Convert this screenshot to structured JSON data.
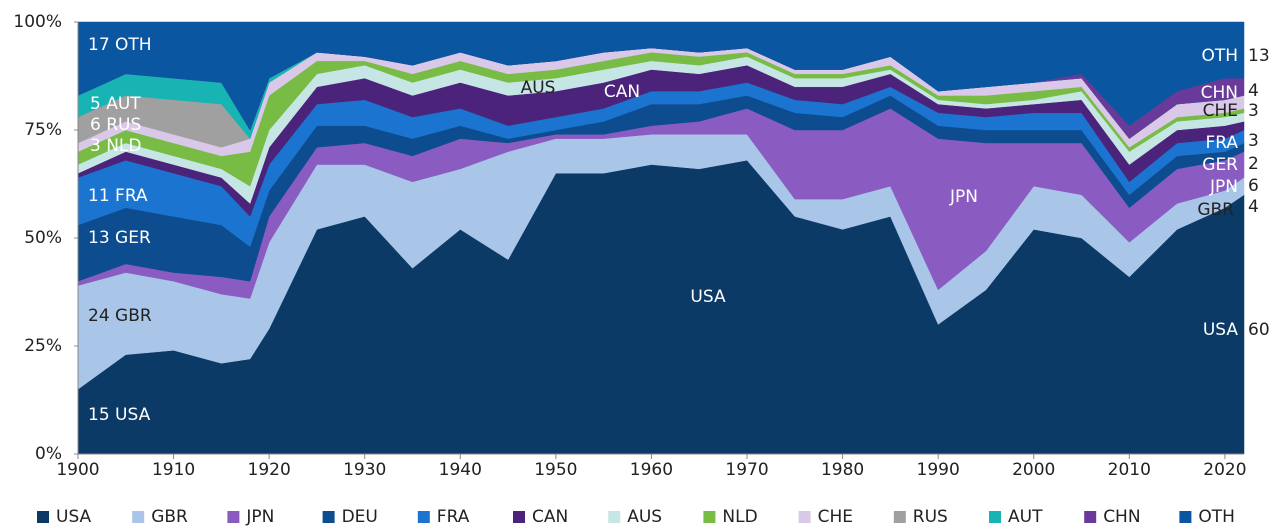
{
  "chart_data": {
    "type": "stacked_area",
    "x": [
      1900,
      1905,
      1910,
      1915,
      1918,
      1920,
      1925,
      1930,
      1935,
      1940,
      1945,
      1950,
      1955,
      1960,
      1965,
      1970,
      1975,
      1980,
      1985,
      1990,
      1995,
      2000,
      2005,
      2010,
      2015,
      2020,
      2022
    ],
    "series": [
      {
        "name": "USA",
        "color": "#0b3a66",
        "values": [
          15,
          23,
          24,
          21,
          22,
          29,
          52,
          55,
          43,
          52,
          45,
          65,
          65,
          67,
          66,
          68,
          55,
          52,
          55,
          30,
          38,
          52,
          50,
          41,
          52,
          57,
          60
        ]
      },
      {
        "name": "GBR",
        "color": "#a9c6e8",
        "values": [
          24,
          19,
          16,
          16,
          14,
          20,
          15,
          12,
          20,
          14,
          25,
          8,
          8,
          7,
          8,
          6,
          4,
          7,
          7,
          8,
          9,
          10,
          10,
          8,
          6,
          4,
          4
        ]
      },
      {
        "name": "JPN",
        "color": "#8a5cc2",
        "values": [
          1,
          2,
          2,
          4,
          4,
          6,
          4,
          5,
          6,
          7,
          2,
          1,
          1,
          2,
          3,
          6,
          16,
          16,
          18,
          35,
          25,
          10,
          12,
          8,
          8,
          7,
          6
        ]
      },
      {
        "name": "DEU",
        "color": "#0d4c8f",
        "values": [
          13,
          13,
          13,
          12,
          8,
          6,
          5,
          4,
          4,
          3,
          1,
          1,
          3,
          5,
          4,
          3,
          4,
          3,
          3,
          3,
          3,
          3,
          3,
          3,
          3,
          2,
          2
        ]
      },
      {
        "name": "FRA",
        "color": "#1a74d0",
        "values": [
          11,
          11,
          10,
          9,
          7,
          6,
          5,
          6,
          5,
          4,
          3,
          3,
          3,
          3,
          3,
          3,
          3,
          3,
          2,
          3,
          3,
          4,
          4,
          3,
          3,
          3,
          3
        ]
      },
      {
        "name": "CAN",
        "color": "#4b237a",
        "values": [
          1,
          2,
          2,
          2,
          3,
          4,
          4,
          5,
          5,
          6,
          7,
          6,
          6,
          5,
          4,
          4,
          3,
          4,
          3,
          2,
          2,
          2,
          3,
          4,
          3,
          3,
          2
        ]
      },
      {
        "name": "AUS",
        "color": "#c6e6e6",
        "values": [
          2,
          2,
          2,
          2,
          4,
          4,
          3,
          3,
          3,
          3,
          3,
          3,
          3,
          2,
          2,
          2,
          2,
          2,
          1,
          1,
          1,
          1,
          2,
          3,
          2,
          2,
          2
        ]
      },
      {
        "name": "NLD",
        "color": "#78bc45",
        "values": [
          3,
          3,
          3,
          3,
          8,
          8,
          3,
          1,
          2,
          2,
          2,
          2,
          2,
          2,
          2,
          1,
          1,
          1,
          1,
          1,
          2,
          2,
          1,
          1,
          1,
          1,
          1
        ]
      },
      {
        "name": "CHE",
        "color": "#d9c8e8",
        "values": [
          2,
          2,
          2,
          2,
          3,
          3,
          2,
          1,
          2,
          2,
          2,
          2,
          2,
          1,
          1,
          1,
          1,
          1,
          2,
          1,
          2,
          2,
          2,
          2,
          3,
          3,
          3
        ]
      },
      {
        "name": "RUS",
        "color": "#a0a0a0",
        "values": [
          6,
          6,
          8,
          10,
          0,
          0,
          0,
          0,
          0,
          0,
          0,
          0,
          0,
          0,
          0,
          0,
          0,
          0,
          0,
          0,
          0,
          0,
          0,
          0,
          0,
          0,
          0
        ]
      },
      {
        "name": "AUT",
        "color": "#18b4b4",
        "values": [
          5,
          5,
          5,
          5,
          2,
          1,
          0,
          0,
          0,
          0,
          0,
          0,
          0,
          0,
          0,
          0,
          0,
          0,
          0,
          0,
          0,
          0,
          0,
          0,
          0,
          0,
          0
        ]
      },
      {
        "name": "CHN",
        "color": "#6a3a9a",
        "values": [
          0,
          0,
          0,
          0,
          0,
          0,
          0,
          0,
          0,
          0,
          0,
          0,
          0,
          0,
          0,
          0,
          0,
          0,
          0,
          0,
          0,
          0,
          1,
          3,
          3,
          5,
          4
        ]
      },
      {
        "name": "OTH",
        "color": "#0b56a0",
        "values": [
          17,
          12,
          13,
          14,
          25,
          13,
          7,
          8,
          10,
          7,
          10,
          9,
          7,
          6,
          7,
          6,
          11,
          11,
          8,
          16,
          15,
          14,
          12,
          24,
          16,
          13,
          13
        ]
      }
    ],
    "xlim": [
      1900,
      2022
    ],
    "xticks": [
      1900,
      1910,
      1920,
      1930,
      1940,
      1950,
      1960,
      1970,
      1980,
      1990,
      2000,
      2010,
      2020
    ],
    "ylim": [
      0,
      100
    ],
    "yticks": [
      {
        "value": 0,
        "label": "0%"
      },
      {
        "value": 25,
        "label": "25%"
      },
      {
        "value": 50,
        "label": "50%"
      },
      {
        "value": 75,
        "label": "75%"
      },
      {
        "value": 100,
        "label": "100%"
      }
    ],
    "annotations": [
      "17 OTH",
      "5 AUT",
      "6 RUS",
      "3 NLD",
      "11 FRA",
      "13 GER",
      "24 GBR",
      "15 USA",
      "AUS",
      "CAN",
      "USA",
      "JPN",
      "OTH",
      "13",
      "CHN",
      "4",
      "CHE",
      "3",
      "FRA",
      "3",
      "GER",
      "2",
      "JPN",
      "6",
      "GBR",
      "4",
      "USA",
      "60"
    ],
    "legend": "bottom"
  }
}
